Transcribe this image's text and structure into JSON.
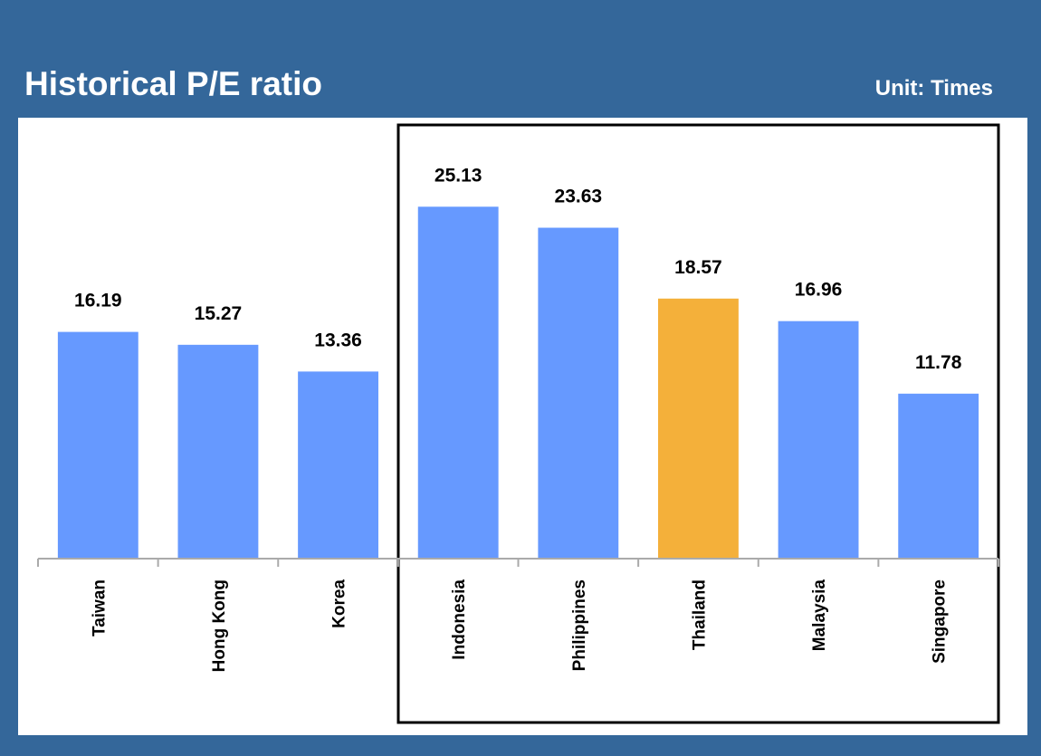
{
  "chart_data": {
    "type": "bar",
    "title": "Historical P/E ratio",
    "subtitle": "Unit: Times",
    "categories": [
      "Taiwan",
      "Hong Kong",
      "Korea",
      "Indonesia",
      "Philippines",
      "Thailand",
      "Malaysia",
      "Singapore"
    ],
    "values": [
      16.19,
      15.27,
      13.36,
      25.13,
      23.63,
      18.57,
      16.96,
      11.78
    ],
    "colors": [
      "#6699ff",
      "#6699ff",
      "#6699ff",
      "#6699ff",
      "#6699ff",
      "#f4b03a",
      "#6699ff",
      "#6699ff"
    ],
    "ylim": [
      0,
      30
    ],
    "grid": false
  }
}
